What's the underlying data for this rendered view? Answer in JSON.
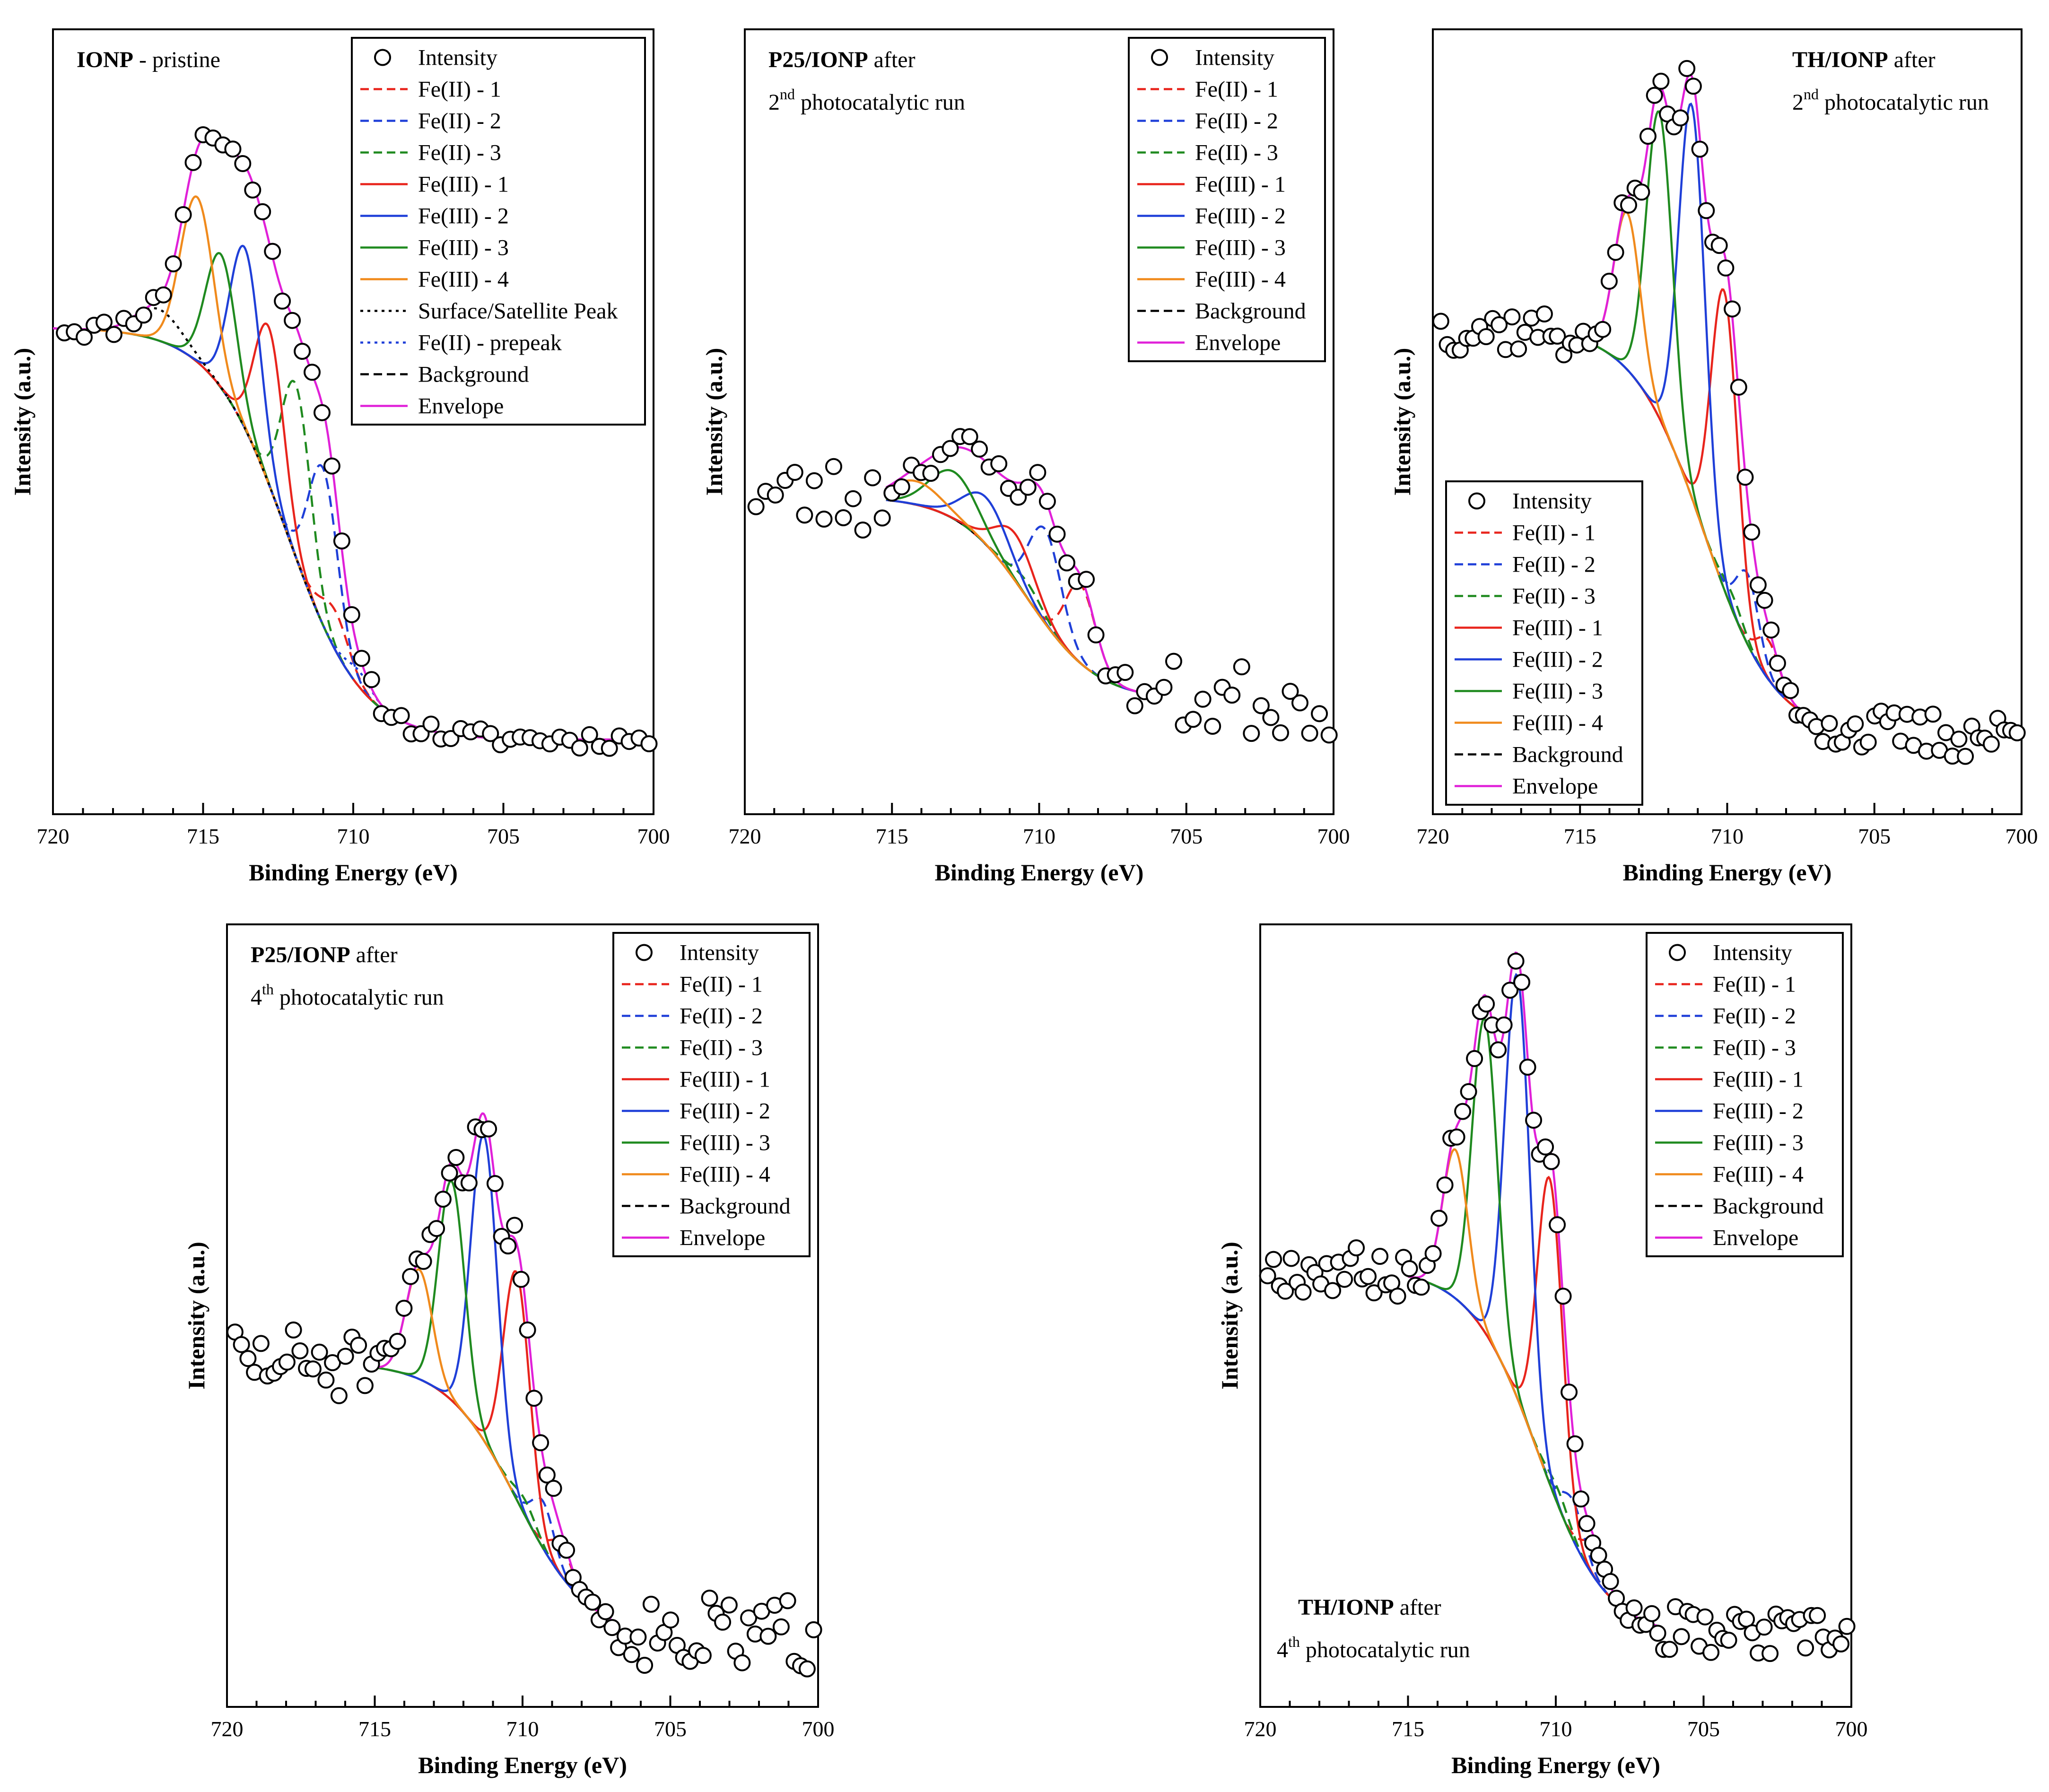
{
  "chart_data": [
    {
      "type": "line",
      "title_bold": "IONP",
      "title_rest": " - pristine",
      "title_line2_pre": "",
      "title_sup": "",
      "title_line2_post": "",
      "title_pos": "top-left",
      "xlabel": "Binding Energy (eV)",
      "ylabel": "Intensity (a.u.)",
      "xlim": [
        720,
        700
      ],
      "ylim": [
        0,
        1
      ],
      "xticks": [
        "720",
        "715",
        "710",
        "705",
        "700"
      ],
      "legend_pos": "top-right",
      "legend": [
        {
          "label": "Intensity",
          "style": "marker"
        },
        {
          "label": "Fe(II) - 1",
          "style": "dashed",
          "color": "#e8241c"
        },
        {
          "label": "Fe(II) - 2",
          "style": "dashed",
          "color": "#1f3fd8"
        },
        {
          "label": "Fe(II) - 3",
          "style": "dashed",
          "color": "#1f8a1f"
        },
        {
          "label": "Fe(III) - 1",
          "style": "solid",
          "color": "#e8241c"
        },
        {
          "label": "Fe(III) - 2",
          "style": "solid",
          "color": "#1f3fd8"
        },
        {
          "label": "Fe(III) - 3",
          "style": "solid",
          "color": "#1f8a1f"
        },
        {
          "label": "Fe(III) - 4",
          "style": "solid",
          "color": "#f08a1c"
        },
        {
          "label": "Surface/Satellite Peak",
          "style": "dotted",
          "color": "#000000"
        },
        {
          "label": "Fe(II) - prepeak",
          "style": "dotted",
          "color": "#1f3fd8"
        },
        {
          "label": "Background",
          "style": "dashed",
          "color": "#000000"
        },
        {
          "label": "Envelope",
          "style": "solid",
          "color": "#e020d8"
        }
      ],
      "background": {
        "high": 0.62,
        "low": 0.095,
        "center": 712.2,
        "width": 1.25,
        "start": 720,
        "end": 700
      },
      "peaks": [
        {
          "name": "Fe(II) - 1",
          "center": 710.6,
          "fwhm": 1.1,
          "amp": 0.05,
          "color": "#e8241c",
          "style": "dashed"
        },
        {
          "name": "Fe(II) - 2",
          "center": 711.0,
          "fwhm": 1.15,
          "amp": 0.2,
          "color": "#1f3fd8",
          "style": "dashed"
        },
        {
          "name": "Fe(II) - 3",
          "center": 711.9,
          "fwhm": 1.15,
          "amp": 0.22,
          "color": "#1f8a1f",
          "style": "dashed"
        },
        {
          "name": "Fe(III) - 1",
          "center": 712.8,
          "fwhm": 1.15,
          "amp": 0.2,
          "color": "#e8241c",
          "style": "solid"
        },
        {
          "name": "Fe(III) - 2",
          "center": 713.6,
          "fwhm": 1.2,
          "amp": 0.23,
          "color": "#1f3fd8",
          "style": "solid"
        },
        {
          "name": "Fe(III) - 3",
          "center": 714.4,
          "fwhm": 1.2,
          "amp": 0.17,
          "color": "#1f8a1f",
          "style": "solid"
        },
        {
          "name": "Fe(III) - 4",
          "center": 715.2,
          "fwhm": 1.3,
          "amp": 0.21,
          "color": "#f08a1c",
          "style": "solid"
        },
        {
          "name": "Surface/Satellite Peak",
          "center": 716.5,
          "fwhm": 1.8,
          "amp": 0.04,
          "color": "#000000",
          "style": "dotted"
        },
        {
          "name": "Fe(II) - prepeak",
          "center": 709.8,
          "fwhm": 1.0,
          "amp": 0.02,
          "color": "#1f3fd8",
          "style": "dotted"
        }
      ],
      "points_step": 0.33,
      "noise": 0.012,
      "seed": 11
    },
    {
      "type": "line",
      "title_bold": "P25/IONP",
      "title_rest": " after",
      "title_line2_pre": "2",
      "title_sup": "nd",
      "title_line2_post": " photocatalytic run",
      "title_pos": "top-left",
      "xlabel": "Binding Energy (eV)",
      "ylabel": "Intensity (a.u.)",
      "xlim": [
        720,
        700
      ],
      "ylim": [
        0,
        1
      ],
      "xticks": [
        "720",
        "715",
        "710",
        "705",
        "700"
      ],
      "legend_pos": "top-right",
      "legend": [
        {
          "label": "Intensity",
          "style": "marker"
        },
        {
          "label": "Fe(II) - 1",
          "style": "dashed",
          "color": "#e8241c"
        },
        {
          "label": "Fe(II) - 2",
          "style": "dashed",
          "color": "#1f3fd8"
        },
        {
          "label": "Fe(II) - 3",
          "style": "dashed",
          "color": "#1f8a1f"
        },
        {
          "label": "Fe(III) - 1",
          "style": "solid",
          "color": "#e8241c"
        },
        {
          "label": "Fe(III) - 2",
          "style": "solid",
          "color": "#1f3fd8"
        },
        {
          "label": "Fe(III) - 3",
          "style": "solid",
          "color": "#1f8a1f"
        },
        {
          "label": "Fe(III) - 4",
          "style": "solid",
          "color": "#f08a1c"
        },
        {
          "label": "Background",
          "style": "dashed",
          "color": "#000000"
        },
        {
          "label": "Envelope",
          "style": "solid",
          "color": "#e020d8"
        }
      ],
      "background": {
        "high": 0.405,
        "low": 0.145,
        "center": 710.4,
        "width": 1.2,
        "start": 715.2,
        "end": 706.0
      },
      "peaks": [
        {
          "name": "Fe(II) - 1",
          "center": 708.6,
          "fwhm": 1.2,
          "amp": 0.1,
          "color": "#e8241c",
          "style": "dashed"
        },
        {
          "name": "Fe(II) - 2",
          "center": 709.8,
          "fwhm": 1.3,
          "amp": 0.12,
          "color": "#1f3fd8",
          "style": "dashed"
        },
        {
          "name": "Fe(II) - 3",
          "center": 710.4,
          "fwhm": 1.3,
          "amp": 0.02,
          "color": "#1f8a1f",
          "style": "dashed"
        },
        {
          "name": "Fe(III) - 1",
          "center": 710.8,
          "fwhm": 1.6,
          "amp": 0.06,
          "color": "#e8241c",
          "style": "solid"
        },
        {
          "name": "Fe(III) - 2",
          "center": 711.8,
          "fwhm": 1.8,
          "amp": 0.06,
          "color": "#1f3fd8",
          "style": "solid"
        },
        {
          "name": "Fe(III) - 3",
          "center": 712.9,
          "fwhm": 1.9,
          "amp": 0.06,
          "color": "#1f8a1f",
          "style": "solid"
        },
        {
          "name": "Fe(III) - 4",
          "center": 714.2,
          "fwhm": 2.0,
          "amp": 0.03,
          "color": "#f08a1c",
          "style": "solid"
        }
      ],
      "points_step": 0.33,
      "noise": 0.022,
      "seed": 23
    },
    {
      "type": "line",
      "title_bold": "TH/IONP",
      "title_rest": " after",
      "title_line2_pre": "2",
      "title_sup": "nd",
      "title_line2_post": " photocatalytic run",
      "title_pos": "top-right",
      "xlabel": "Binding Energy (eV)",
      "ylabel": "Intensity (a.u.)",
      "xlim": [
        720,
        700
      ],
      "ylim": [
        0,
        1
      ],
      "xticks": [
        "720",
        "715",
        "710",
        "705",
        "700"
      ],
      "legend_pos": "bottom-left",
      "legend": [
        {
          "label": "Intensity",
          "style": "marker"
        },
        {
          "label": "Fe(II) - 1",
          "style": "dashed",
          "color": "#e8241c"
        },
        {
          "label": "Fe(II) - 2",
          "style": "dashed",
          "color": "#1f3fd8"
        },
        {
          "label": "Fe(II) - 3",
          "style": "dashed",
          "color": "#1f8a1f"
        },
        {
          "label": "Fe(III) - 1",
          "style": "solid",
          "color": "#e8241c"
        },
        {
          "label": "Fe(III) - 2",
          "style": "solid",
          "color": "#1f3fd8"
        },
        {
          "label": "Fe(III) - 3",
          "style": "solid",
          "color": "#1f8a1f"
        },
        {
          "label": "Fe(III) - 4",
          "style": "solid",
          "color": "#f08a1c"
        },
        {
          "label": "Background",
          "style": "dashed",
          "color": "#000000"
        },
        {
          "label": "Envelope",
          "style": "solid",
          "color": "#e020d8"
        }
      ],
      "background": {
        "high": 0.62,
        "low": 0.1,
        "center": 710.8,
        "width": 1.2,
        "start": 715.2,
        "end": 707.0
      },
      "peaks": [
        {
          "name": "Fe(II) - 1",
          "center": 708.6,
          "fwhm": 0.9,
          "amp": 0.05,
          "color": "#e8241c",
          "style": "dashed"
        },
        {
          "name": "Fe(II) - 2",
          "center": 709.3,
          "fwhm": 0.9,
          "amp": 0.09,
          "color": "#1f3fd8",
          "style": "dashed"
        },
        {
          "name": "Fe(II) - 3",
          "center": 709.8,
          "fwhm": 0.9,
          "amp": 0.02,
          "color": "#1f8a1f",
          "style": "dashed"
        },
        {
          "name": "Fe(III) - 1",
          "center": 710.1,
          "fwhm": 1.05,
          "amp": 0.38,
          "color": "#e8241c",
          "style": "solid"
        },
        {
          "name": "Fe(III) - 2",
          "center": 711.2,
          "fwhm": 1.05,
          "amp": 0.5,
          "color": "#1f3fd8",
          "style": "solid"
        },
        {
          "name": "Fe(III) - 3",
          "center": 712.3,
          "fwhm": 1.05,
          "amp": 0.39,
          "color": "#1f8a1f",
          "style": "solid"
        },
        {
          "name": "Fe(III) - 4",
          "center": 713.4,
          "fwhm": 1.05,
          "amp": 0.2,
          "color": "#f08a1c",
          "style": "solid"
        }
      ],
      "points_step": 0.22,
      "noise": 0.014,
      "seed": 37
    },
    {
      "type": "line",
      "title_bold": "P25/IONP",
      "title_rest": " after",
      "title_line2_pre": "4",
      "title_sup": "th",
      "title_line2_post": " photocatalytic run",
      "title_pos": "top-left",
      "xlabel": "Binding Energy (eV)",
      "ylabel": "Intensity (a.u.)",
      "xlim": [
        720,
        700
      ],
      "ylim": [
        0,
        1
      ],
      "xticks": [
        "720",
        "715",
        "710",
        "705",
        "700"
      ],
      "legend_pos": "top-right",
      "legend": [
        {
          "label": "Intensity",
          "style": "marker"
        },
        {
          "label": "Fe(II) - 1",
          "style": "dashed",
          "color": "#e8241c"
        },
        {
          "label": "Fe(II) - 2",
          "style": "dashed",
          "color": "#1f3fd8"
        },
        {
          "label": "Fe(II) - 3",
          "style": "dashed",
          "color": "#1f8a1f"
        },
        {
          "label": "Fe(III) - 1",
          "style": "solid",
          "color": "#e8241c"
        },
        {
          "label": "Fe(III) - 2",
          "style": "solid",
          "color": "#1f3fd8"
        },
        {
          "label": "Fe(III) - 3",
          "style": "solid",
          "color": "#1f8a1f"
        },
        {
          "label": "Fe(III) - 4",
          "style": "solid",
          "color": "#f08a1c"
        },
        {
          "label": "Background",
          "style": "dashed",
          "color": "#000000"
        },
        {
          "label": "Envelope",
          "style": "solid",
          "color": "#e020d8"
        }
      ],
      "background": {
        "high": 0.44,
        "low": 0.09,
        "center": 710.2,
        "width": 1.2,
        "start": 715.2,
        "end": 707.0
      },
      "peaks": [
        {
          "name": "Fe(II) - 1",
          "center": 708.7,
          "fwhm": 0.9,
          "amp": 0.04,
          "color": "#e8241c",
          "style": "dashed"
        },
        {
          "name": "Fe(II) - 2",
          "center": 709.3,
          "fwhm": 0.9,
          "amp": 0.06,
          "color": "#1f3fd8",
          "style": "dashed"
        },
        {
          "name": "Fe(II) - 3",
          "center": 709.9,
          "fwhm": 0.9,
          "amp": 0.02,
          "color": "#1f8a1f",
          "style": "dashed"
        },
        {
          "name": "Fe(III) - 1",
          "center": 710.2,
          "fwhm": 1.05,
          "amp": 0.29,
          "color": "#e8241c",
          "style": "solid"
        },
        {
          "name": "Fe(III) - 2",
          "center": 711.3,
          "fwhm": 1.05,
          "amp": 0.39,
          "color": "#1f3fd8",
          "style": "solid"
        },
        {
          "name": "Fe(III) - 3",
          "center": 712.4,
          "fwhm": 1.05,
          "amp": 0.28,
          "color": "#1f8a1f",
          "style": "solid"
        },
        {
          "name": "Fe(III) - 4",
          "center": 713.5,
          "fwhm": 1.05,
          "amp": 0.14,
          "color": "#f08a1c",
          "style": "solid"
        }
      ],
      "points_step": 0.22,
      "noise": 0.022,
      "seed": 51
    },
    {
      "type": "line",
      "title_bold": "TH/IONP",
      "title_rest": " after",
      "title_line2_pre": "4",
      "title_sup": "th",
      "title_line2_post": " photocatalytic run",
      "title_pos": "bottom-left",
      "xlabel": "Binding Energy (eV)",
      "ylabel": "Intensity (a.u.)",
      "xlim": [
        720,
        700
      ],
      "ylim": [
        0,
        1
      ],
      "xticks": [
        "720",
        "715",
        "710",
        "705",
        "700"
      ],
      "legend_pos": "top-right",
      "legend": [
        {
          "label": "Intensity",
          "style": "marker"
        },
        {
          "label": "Fe(II) - 1",
          "style": "dashed",
          "color": "#e8241c"
        },
        {
          "label": "Fe(II) - 2",
          "style": "dashed",
          "color": "#1f3fd8"
        },
        {
          "label": "Fe(II) - 3",
          "style": "dashed",
          "color": "#1f8a1f"
        },
        {
          "label": "Fe(III) - 1",
          "style": "solid",
          "color": "#e8241c"
        },
        {
          "label": "Fe(III) - 2",
          "style": "solid",
          "color": "#1f3fd8"
        },
        {
          "label": "Fe(III) - 3",
          "style": "solid",
          "color": "#1f8a1f"
        },
        {
          "label": "Fe(III) - 4",
          "style": "solid",
          "color": "#f08a1c"
        },
        {
          "label": "Background",
          "style": "dashed",
          "color": "#000000"
        },
        {
          "label": "Envelope",
          "style": "solid",
          "color": "#e020d8"
        }
      ],
      "background": {
        "high": 0.56,
        "low": 0.09,
        "center": 710.6,
        "width": 1.15,
        "start": 715.0,
        "end": 706.5
      },
      "peaks": [
        {
          "name": "Fe(II) - 1",
          "center": 708.7,
          "fwhm": 0.9,
          "amp": 0.04,
          "color": "#e8241c",
          "style": "dashed"
        },
        {
          "name": "Fe(II) - 2",
          "center": 709.4,
          "fwhm": 0.9,
          "amp": 0.05,
          "color": "#1f3fd8",
          "style": "dashed"
        },
        {
          "name": "Fe(II) - 3",
          "center": 709.9,
          "fwhm": 0.9,
          "amp": 0.02,
          "color": "#1f8a1f",
          "style": "dashed"
        },
        {
          "name": "Fe(III) - 1",
          "center": 710.2,
          "fwhm": 1.0,
          "amp": 0.39,
          "color": "#e8241c",
          "style": "solid"
        },
        {
          "name": "Fe(III) - 2",
          "center": 711.3,
          "fwhm": 1.0,
          "amp": 0.54,
          "color": "#1f3fd8",
          "style": "solid"
        },
        {
          "name": "Fe(III) - 3",
          "center": 712.4,
          "fwhm": 1.0,
          "amp": 0.4,
          "color": "#1f8a1f",
          "style": "solid"
        },
        {
          "name": "Fe(III) - 4",
          "center": 713.4,
          "fwhm": 1.0,
          "amp": 0.19,
          "color": "#f08a1c",
          "style": "solid"
        }
      ],
      "points_step": 0.2,
      "noise": 0.014,
      "seed": 67
    }
  ]
}
